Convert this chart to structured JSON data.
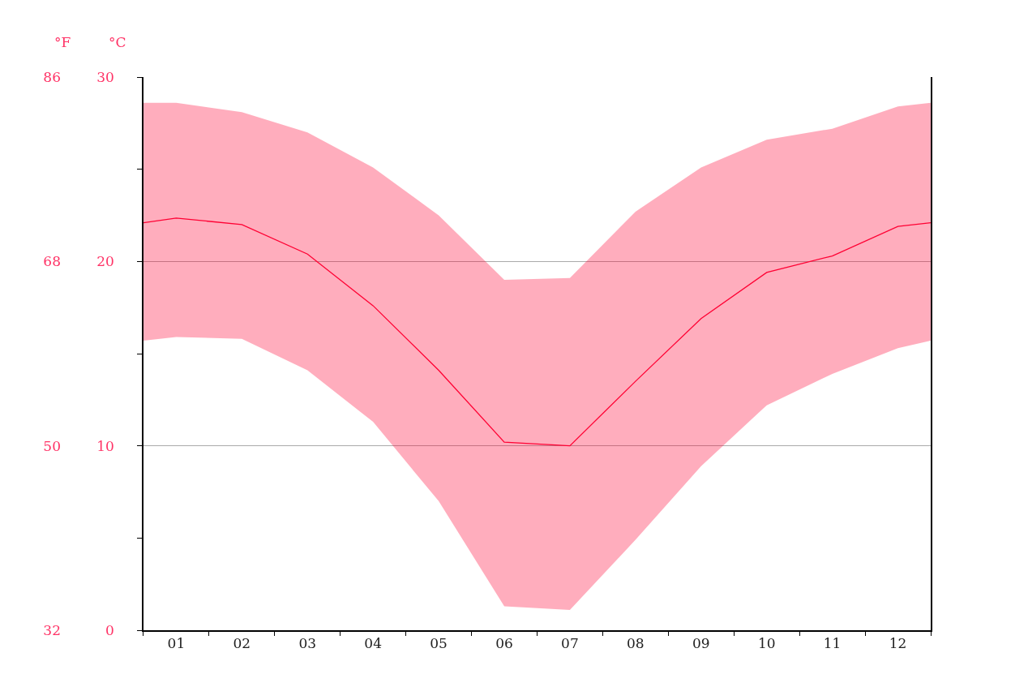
{
  "chart_data": {
    "type": "line",
    "ylabel": "°C",
    "y2label": "°F",
    "x": [
      0.5,
      1,
      2,
      3,
      4,
      5,
      6,
      7,
      8,
      9,
      10,
      11,
      12,
      12.5
    ],
    "xlim": [
      0.5,
      12.5
    ],
    "xticks": [
      {
        "value": 1,
        "label": "01"
      },
      {
        "value": 2,
        "label": "02"
      },
      {
        "value": 3,
        "label": "03"
      },
      {
        "value": 4,
        "label": "04"
      },
      {
        "value": 5,
        "label": "05"
      },
      {
        "value": 6,
        "label": "06"
      },
      {
        "value": 7,
        "label": "07"
      },
      {
        "value": 8,
        "label": "08"
      },
      {
        "value": 9,
        "label": "09"
      },
      {
        "value": 10,
        "label": "10"
      },
      {
        "value": 11,
        "label": "11"
      },
      {
        "value": 12,
        "label": "12"
      }
    ],
    "ylim": [
      0,
      30
    ],
    "yticks": [
      0,
      10,
      20,
      30
    ],
    "y2lim": [
      32,
      86
    ],
    "y2ticks": [
      32,
      50,
      68,
      86
    ],
    "series": [
      {
        "color": "#ff0033",
        "values": [
          22.1,
          22.35,
          22.0,
          20.4,
          17.6,
          14.1,
          10.2,
          10.0,
          13.5,
          16.9,
          19.4,
          20.3,
          21.9,
          22.1
        ],
        "lower": [
          15.7,
          15.9,
          15.8,
          14.1,
          11.3,
          7.0,
          1.3,
          1.1,
          4.9,
          8.9,
          12.2,
          13.9,
          15.3,
          15.7
        ],
        "upper": [
          28.6,
          28.6,
          28.1,
          27.0,
          25.1,
          22.5,
          19.0,
          19.1,
          22.7,
          25.1,
          26.6,
          27.2,
          28.4,
          28.6
        ]
      }
    ],
    "grid": "y"
  }
}
